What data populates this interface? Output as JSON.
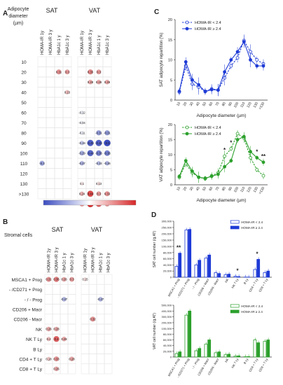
{
  "panels": {
    "A": {
      "letter": "A",
      "row_header": [
        "Adipocyte",
        "diameter",
        "(µm)"
      ],
      "groups": [
        "SAT",
        "VAT"
      ],
      "columns": [
        "HOMA-IR 1y",
        "HOMA-IR 3 y",
        "HbA1c 1 y",
        "HbA1c 3 y",
        "HOMA-IR 1y",
        "HOMA-IR 3 y",
        "HbA1c 1 y",
        "HbA1c 3 y"
      ],
      "rows": [
        "10",
        "20",
        "30",
        "40",
        "50",
        "60",
        "70",
        "80",
        "90",
        "100",
        "110",
        "120",
        "130",
        ">130"
      ],
      "cells": [
        {
          "r": 1,
          "c": 2,
          "v": "0.31",
          "k": 0.5
        },
        {
          "r": 1,
          "c": 3,
          "v": "0.3",
          "k": 0.45
        },
        {
          "r": 1,
          "c": 5,
          "v": "0.35",
          "k": 0.55
        },
        {
          "r": 1,
          "c": 6,
          "v": "0.3",
          "k": 0.45
        },
        {
          "r": 2,
          "c": 5,
          "v": "0.28",
          "k": 0.4
        },
        {
          "r": 2,
          "c": 6,
          "v": "0.28",
          "k": 0.4
        },
        {
          "r": 2,
          "c": 7,
          "v": "0.29",
          "k": 0.4
        },
        {
          "r": 3,
          "c": 3,
          "v": "0.23",
          "k": 0.3
        },
        {
          "r": 5,
          "c": 4,
          "v": "-0.12",
          "k": -0.1
        },
        {
          "r": 6,
          "c": 4,
          "v": "-0.04",
          "k": -0.05
        },
        {
          "r": 7,
          "c": 4,
          "v": "-0.11",
          "k": -0.1
        },
        {
          "r": 7,
          "c": 6,
          "v": "-0.31",
          "k": -0.55
        },
        {
          "r": 7,
          "c": 7,
          "v": "-0.31",
          "k": -0.55
        },
        {
          "r": 8,
          "c": 4,
          "v": "-0.19",
          "k": -0.3
        },
        {
          "r": 8,
          "c": 5,
          "v": "-0.45",
          "k": -0.9
        },
        {
          "r": 8,
          "c": 6,
          "v": "-0.45",
          "k": -0.9
        },
        {
          "r": 8,
          "c": 7,
          "v": "-0.5",
          "k": -1
        },
        {
          "r": 9,
          "c": 4,
          "v": "-0.29",
          "k": -0.45
        },
        {
          "r": 9,
          "c": 5,
          "v": "-0.44",
          "k": -0.85
        },
        {
          "r": 9,
          "c": 6,
          "v": "-0.36",
          "k": -0.7
        },
        {
          "r": 9,
          "c": 7,
          "v": "-0.36",
          "k": -0.7
        },
        {
          "r": 10,
          "c": 0,
          "v": "-0.3",
          "k": -0.5
        },
        {
          "r": 10,
          "c": 4,
          "v": "-0.27",
          "k": -0.4
        },
        {
          "r": 10,
          "c": 6,
          "v": "-0.24",
          "k": -0.35
        },
        {
          "r": 10,
          "c": 7,
          "v": "-0.26",
          "k": -0.4
        },
        {
          "r": 12,
          "c": 4,
          "v": "0.1",
          "k": 0.1
        },
        {
          "r": 12,
          "c": 6,
          "v": "0.13",
          "k": 0.15
        },
        {
          "r": 13,
          "c": 4,
          "v": "0.24",
          "k": 0.35
        },
        {
          "r": 13,
          "c": 5,
          "v": "0.44",
          "k": 0.85
        },
        {
          "r": 13,
          "c": 6,
          "v": "0.3",
          "k": 0.45
        },
        {
          "r": 13,
          "c": 7,
          "v": "0.33",
          "k": 0.5
        },
        {
          "r": 14,
          "c": 4,
          "v": "0.34",
          "k": 0.55
        },
        {
          "r": 14,
          "c": 5,
          "v": "0.5",
          "k": 1
        },
        {
          "r": 14,
          "c": 6,
          "v": "0.41",
          "k": 0.8
        },
        {
          "r": 14,
          "c": 7,
          "v": "0.34",
          "k": 0.55
        }
      ],
      "colorbar": {
        "neg": "#3b4cc0",
        "mid": "#ffffff",
        "pos": "#d62728"
      }
    },
    "B": {
      "letter": "B",
      "row_header": "Stromal cells",
      "groups": [
        "SAT",
        "VAT"
      ],
      "columns": [
        "HOMA-IR 1y",
        "HOMA-IR 3 y",
        "HbA1c 1 y",
        "HbA1c 3 y",
        "HOMA-IR 1y",
        "HOMA-IR 3 y",
        "HbA1c 1 y",
        "HbA1c 3 y"
      ],
      "rows": [
        "MSCA1 + Prog",
        "- /CD271 + Prog",
        "- / - Prog",
        "CD206 + Macr",
        "CD206 - Macr",
        "NK",
        "NK T Ly",
        "B Ly",
        "CD4 + T Ly",
        "CD8 + T Ly"
      ],
      "cells": [
        {
          "r": 0,
          "c": 0,
          "v": "0.31",
          "k": 0.5
        },
        {
          "r": 0,
          "c": 1,
          "v": "0.36",
          "k": 0.6
        },
        {
          "r": 0,
          "c": 2,
          "v": "0.26",
          "k": 0.4
        },
        {
          "r": 0,
          "c": 3,
          "v": "0.3",
          "k": 0.45
        },
        {
          "r": 0,
          "c": 4,
          "v": "0.15",
          "k": 0.15
        },
        {
          "r": 2,
          "c": 2,
          "v": "-0.27",
          "k": -0.4
        },
        {
          "r": 2,
          "c": 6,
          "v": "-0.27",
          "k": -0.4
        },
        {
          "r": 4,
          "c": 5,
          "v": "0.32",
          "k": 0.5
        },
        {
          "r": 5,
          "c": 0,
          "v": "0.26",
          "k": 0.4
        },
        {
          "r": 5,
          "c": 1,
          "v": "0.28",
          "k": 0.4
        },
        {
          "r": 6,
          "c": 0,
          "v": "0.2",
          "k": 0.3
        },
        {
          "r": 6,
          "c": 1,
          "v": "0.4",
          "k": 0.75
        },
        {
          "r": 6,
          "c": 2,
          "v": "0.28",
          "k": 0.4
        },
        {
          "r": 8,
          "c": 0,
          "v": "0.18",
          "k": 0.25
        },
        {
          "r": 8,
          "c": 1,
          "v": "0.33",
          "k": 0.5
        },
        {
          "r": 8,
          "c": 3,
          "v": "0.28",
          "k": 0.4
        },
        {
          "r": 9,
          "c": 1,
          "v": "0.26",
          "k": 0.4
        }
      ]
    }
  },
  "chart_data": [
    {
      "panel": "C",
      "type": "line",
      "ylabel": "SAT adipocyte repartition (%)",
      "xlabel": "Adipocyte diameter (µm)",
      "categories": [
        "10",
        "20",
        "30",
        "40",
        "50",
        "60",
        "70",
        "80",
        "90",
        "100",
        "110",
        "120",
        "130",
        ">130"
      ],
      "ylim": [
        0,
        20
      ],
      "yticks": [
        "0",
        "5",
        "10",
        "15",
        "20"
      ],
      "series": [
        {
          "name": "HOMA-IR < 2.4",
          "color": "#1f3bd6",
          "dashed": true,
          "open": true,
          "values": [
            2,
            8.5,
            4,
            3.2,
            2.2,
            2.8,
            2.5,
            5.5,
            8.5,
            10.5,
            14.8,
            12,
            10,
            9
          ]
        },
        {
          "name": "HOMA-IR ≥ 2.4",
          "color": "#1f3bd6",
          "dashed": false,
          "open": false,
          "values": [
            2.2,
            9.5,
            5,
            3.8,
            2.1,
            2.6,
            2.5,
            7,
            10,
            12,
            14.5,
            10,
            8.5,
            8.5
          ]
        }
      ]
    },
    {
      "panel": "C",
      "type": "line",
      "ylabel": "VAT adipocyte repartition (%)",
      "xlabel": "Adipocyte diameter (µm)",
      "categories": [
        "10",
        "20",
        "30",
        "40",
        "50",
        "60",
        "70",
        "80",
        "90",
        "100",
        "110",
        "120",
        "130",
        ">130"
      ],
      "ylim": [
        0,
        20
      ],
      "yticks": [
        "0",
        "5",
        "10",
        "15",
        "20"
      ],
      "annotations": [
        {
          "x": 7,
          "text": "*"
        },
        {
          "x": 8,
          "text": "*"
        },
        {
          "x": 12,
          "text": "*"
        },
        {
          "x": 13,
          "text": "**"
        }
      ],
      "series": [
        {
          "name": "HOMA-IR < 2.4",
          "color": "#2ca02c",
          "dashed": true,
          "open": true,
          "values": [
            2.5,
            7,
            4,
            2.5,
            2,
            3,
            4,
            9.5,
            12,
            17,
            15.5,
            9,
            5,
            3
          ]
        },
        {
          "name": "HOMA-IR ≥ 2.4",
          "color": "#2ca02c",
          "dashed": false,
          "open": false,
          "values": [
            2.8,
            8,
            4.5,
            2.5,
            2.2,
            2.8,
            3.5,
            6,
            8,
            15,
            16,
            11,
            9,
            7.5
          ]
        }
      ]
    },
    {
      "panel": "D",
      "type": "bar",
      "ylabel": "SAT cell number (/g AT)",
      "yticks": [
        "0",
        "20,000",
        "40,000",
        "60,000",
        "80,000",
        "100,000",
        "150,000",
        "200,000",
        "250,000",
        "300,000"
      ],
      "categories": [
        "MSCA1 + Prog",
        "- /CD271 + Prog",
        "- / - Prog",
        "CD206 + Macr",
        "CD206 - Macr",
        "NK",
        "NK T Ly",
        "B Ly",
        "CD4 + T Ly",
        "CD8 + T Ly"
      ],
      "annotations": [
        {
          "x": 0,
          "text": "**"
        },
        {
          "x": 6,
          "text": "*"
        },
        {
          "x": 8,
          "text": "*"
        }
      ],
      "series": [
        {
          "name": "HOMA-IR < 2.4",
          "color": "#1f3bd6",
          "open": true,
          "values": [
            35000,
            230000,
            40000,
            62000,
            15000,
            8000,
            3000,
            500,
            25000,
            15000
          ]
        },
        {
          "name": "HOMA-IR ≥ 2.4",
          "color": "#1f3bd6",
          "open": false,
          "values": [
            78000,
            235000,
            55000,
            72000,
            12000,
            10000,
            2000,
            500,
            58000,
            20000
          ]
        }
      ]
    },
    {
      "panel": "D",
      "type": "bar",
      "ylabel": "VAT cell number (/g AT)",
      "yticks": [
        "0",
        "20,000",
        "40,000",
        "60,000",
        "80,000",
        "100,000",
        "200,000",
        "300,000",
        "400,000",
        "500,000"
      ],
      "categories": [
        "MSCA1 + Prog",
        "- /CD271 + Prog",
        "- / - Prog",
        "CD206 + Macr",
        "CD206 - Macr",
        "NK",
        "NK T Ly",
        "B Ly",
        "CD4 + T Ly",
        "CD8 + T Ly"
      ],
      "series": [
        {
          "name": "HOMA-IR < 2.4",
          "color": "#2ca02c",
          "open": true,
          "values": [
            12000,
            330000,
            22000,
            45000,
            15000,
            8000,
            3000,
            1000,
            60000,
            55000
          ]
        },
        {
          "name": "HOMA-IR ≥ 2.4",
          "color": "#2ca02c",
          "open": false,
          "values": [
            18000,
            400000,
            30000,
            60000,
            18000,
            10000,
            4000,
            1500,
            50000,
            60000
          ]
        }
      ]
    }
  ]
}
